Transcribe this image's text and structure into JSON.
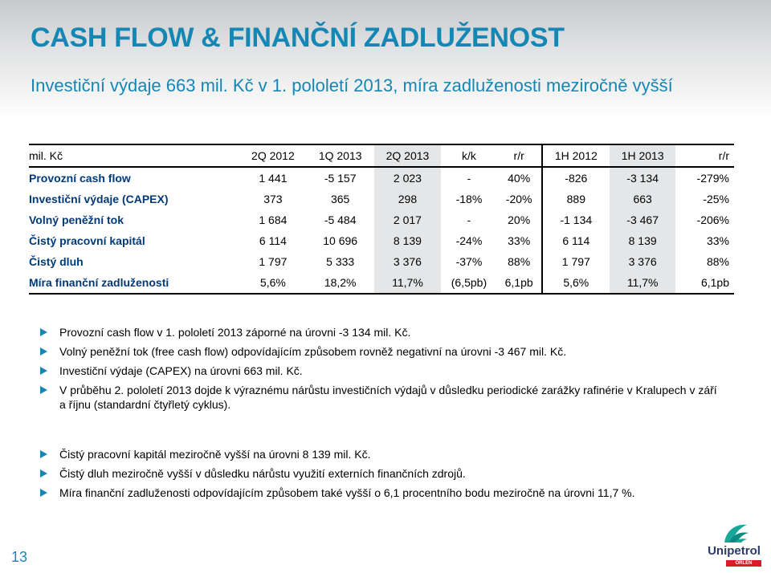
{
  "header": {
    "title": "CASH FLOW & FINANČNÍ ZADLUŽENOST",
    "subtitle": "Investiční výdaje 663 mil. Kč v 1. pololetí 2013, míra zadluženosti meziročně vyšší"
  },
  "table": {
    "columns": [
      "mil. Kč",
      "2Q 2012",
      "1Q 2013",
      "2Q 2013",
      "k/k",
      "r/r",
      "1H 2012",
      "1H 2013",
      "r/r"
    ],
    "rows": [
      {
        "label": "Provozní cash flow",
        "values": [
          "1 441",
          "-5 157",
          "2 023",
          "-",
          "40%",
          "-826",
          "-3 134",
          "-279%"
        ]
      },
      {
        "label": "Investiční výdaje (CAPEX)",
        "values": [
          "373",
          "365",
          "298",
          "-18%",
          "-20%",
          "889",
          "663",
          "-25%"
        ]
      },
      {
        "label": "Volný peněžní tok",
        "values": [
          "1 684",
          "-5 484",
          "2 017",
          "-",
          "20%",
          "-1 134",
          "-3 467",
          "-206%"
        ]
      },
      {
        "label": "Čistý pracovní kapitál",
        "values": [
          "6 114",
          "10 696",
          "8 139",
          "-24%",
          "33%",
          "6 114",
          "8 139",
          "33%"
        ]
      },
      {
        "label": "Čistý dluh",
        "values": [
          "1 797",
          "5 333",
          "3 376",
          "-37%",
          "88%",
          "1 797",
          "3 376",
          "88%"
        ]
      },
      {
        "label": "Míra finanční zadluženosti",
        "values": [
          "5,6%",
          "18,2%",
          "11,7%",
          "(6,5pb)",
          "6,1pb",
          "5,6%",
          "11,7%",
          "6,1pb"
        ]
      }
    ]
  },
  "bullets_1": [
    "Provozní cash flow v 1. pololetí 2013 záporné na úrovni -3 134 mil. Kč.",
    "Volný peněžní tok (free cash flow) odpovídajícím způsobem rovněž negativní na úrovni -3 467 mil. Kč.",
    "Investiční výdaje (CAPEX) na úrovni 663 mil. Kč.",
    "V průběhu 2. pololetí 2013 dojde k výraznému nárůstu investičních výdajů v důsledku periodické zarážky rafinérie v Kralupech v září a říjnu (standardní čtyřletý cyklus)."
  ],
  "bullets_2": [
    "Čistý pracovní kapitál meziročně vyšší na úrovni 8 139 mil. Kč.",
    "Čistý dluh meziročně vyšší v důsledku nárůstu využití externích finančních zdrojů.",
    "Míra finanční zadluženosti odpovídajícím způsobem také vyšší o 6,1 procentního bodu meziročně na úrovni 11,7 %."
  ],
  "footer": {
    "page_number": "13",
    "logo_text": "Unipetrol",
    "logo_sub": "ORLEN GROUP"
  },
  "colors": {
    "accent": "#1587b5",
    "label_text": "#003a7a",
    "highlight": "#e4e6e8"
  }
}
